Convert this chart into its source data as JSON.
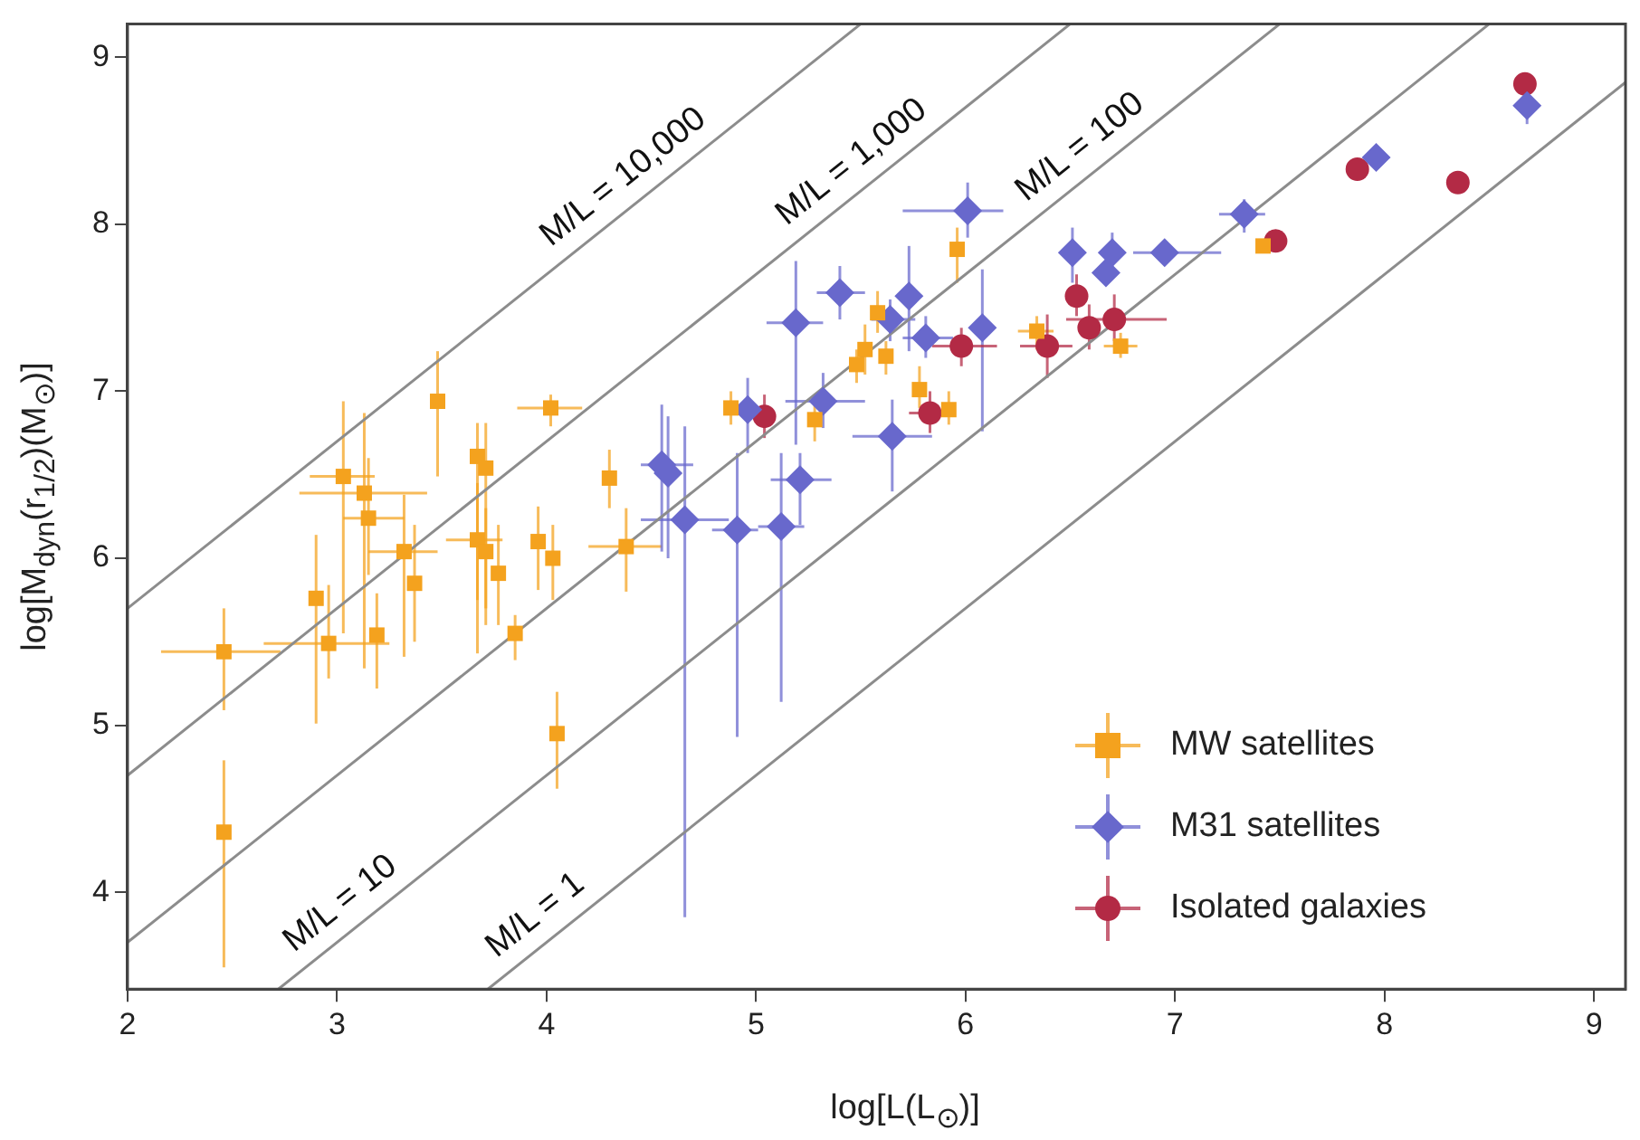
{
  "chart_data": {
    "type": "scatter",
    "xlabel": "log[L(L$_{⊙}$)]",
    "ylabel": "log[M$_{dyn}$(r$_{1/2}$)(M$_{⊙}$)]",
    "xlim": [
      2,
      9.15
    ],
    "ylim": [
      3.42,
      9.2
    ],
    "xticks": [
      2,
      3,
      4,
      5,
      6,
      7,
      8,
      9
    ],
    "yticks": [
      4,
      5,
      6,
      7,
      8,
      9
    ],
    "grid": false,
    "legend": "bottom right",
    "series": [
      {
        "type": "line",
        "color": "#8c8c8c",
        "marker": "none",
        "x": [
          3.72,
          9.15
        ],
        "values": [
          3.42,
          8.85
        ]
      },
      {
        "type": "line",
        "color": "#8c8c8c",
        "marker": "none",
        "x": [
          2.72,
          8.5
        ],
        "values": [
          3.42,
          9.2
        ]
      },
      {
        "type": "line",
        "color": "#8c8c8c",
        "marker": "none",
        "x": [
          2,
          7.5
        ],
        "values": [
          3.7,
          9.2
        ]
      },
      {
        "type": "line",
        "color": "#8c8c8c",
        "marker": "none",
        "x": [
          2,
          6.5
        ],
        "values": [
          4.7,
          9.2
        ]
      },
      {
        "type": "line",
        "color": "#8c8c8c",
        "marker": "none",
        "x": [
          2,
          5.5
        ],
        "values": [
          5.7,
          9.2
        ]
      },
      {
        "name": "MW satellites",
        "color": "#f4a21e",
        "marker": "square",
        "x": [
          2.46,
          2.46,
          3.48,
          3.03,
          3.13,
          3.15,
          2.9,
          2.96,
          3.19,
          3.32,
          3.37,
          3.67,
          3.71,
          3.67,
          3.71,
          3.77,
          3.85,
          3.96,
          4.03,
          4.02,
          4.3,
          4.38,
          4.05,
          4.88,
          5.28,
          5.58,
          5.52,
          5.62,
          5.48,
          5.78,
          5.92,
          5.96,
          6.34,
          6.74,
          7.42
        ],
        "values": [
          5.44,
          4.36,
          6.94,
          6.49,
          6.39,
          6.24,
          5.76,
          5.49,
          5.54,
          6.04,
          5.85,
          6.61,
          6.54,
          6.11,
          6.04,
          5.91,
          5.55,
          6.1,
          6.0,
          6.9,
          6.48,
          6.07,
          4.95,
          6.9,
          6.83,
          7.47,
          7.25,
          7.21,
          7.16,
          7.01,
          6.89,
          7.85,
          7.36,
          7.27,
          7.87
        ],
        "errors": [
          [
            5.09,
            5.7
          ],
          [
            3.55,
            4.79
          ],
          [
            6.49,
            7.24
          ],
          [
            5.55,
            6.94
          ],
          [
            5.34,
            6.87
          ],
          [
            5.9,
            6.6
          ],
          [
            5.01,
            6.14
          ],
          [
            5.28,
            5.84
          ],
          [
            5.22,
            5.79
          ],
          [
            5.41,
            6.38
          ],
          [
            5.5,
            6.2
          ],
          [
            5.43,
            6.81
          ],
          [
            5.6,
            6.81
          ],
          [
            5.75,
            6.45
          ],
          [
            5.7,
            6.3
          ],
          [
            5.6,
            6.2
          ],
          [
            5.39,
            5.66
          ],
          [
            5.81,
            6.31
          ],
          [
            5.75,
            6.2
          ],
          [
            6.79,
            6.98
          ],
          [
            6.3,
            6.65
          ],
          [
            5.8,
            6.3
          ],
          [
            4.62,
            5.2
          ],
          [
            6.8,
            7.0
          ],
          [
            6.7,
            6.95
          ],
          [
            7.35,
            7.6
          ],
          [
            7.1,
            7.4
          ],
          [
            7.1,
            7.3
          ],
          [
            7.05,
            7.25
          ],
          [
            6.9,
            7.15
          ],
          [
            6.8,
            7.0
          ],
          [
            7.65,
            7.98
          ],
          [
            7.25,
            7.45
          ],
          [
            7.2,
            7.35
          ],
          null
        ],
        "xerrors": [
          [
            2.16,
            2.73
          ],
          null,
          null,
          [
            2.87,
            3.18
          ],
          [
            2.82,
            3.43
          ],
          [
            3.03,
            3.32
          ],
          null,
          [
            2.65,
            3.25
          ],
          null,
          [
            3.15,
            3.48
          ],
          null,
          null,
          null,
          [
            3.52,
            3.79
          ],
          null,
          null,
          null,
          null,
          null,
          [
            3.86,
            4.17
          ],
          null,
          [
            4.2,
            4.55
          ],
          null,
          null,
          null,
          null,
          null,
          null,
          null,
          null,
          null,
          null,
          [
            6.25,
            6.42
          ],
          [
            6.66,
            6.82
          ],
          null
        ]
      },
      {
        "name": "M31 satellites",
        "color": "#6868cc",
        "marker": "diamond",
        "x": [
          6.01,
          5.19,
          5.4,
          5.73,
          5.64,
          5.81,
          6.08,
          5.32,
          5.65,
          4.96,
          5.21,
          4.55,
          4.58,
          4.66,
          4.91,
          5.12,
          6.51,
          6.7,
          6.67,
          6.95,
          7.33,
          7.96,
          8.68
        ],
        "values": [
          8.08,
          7.41,
          7.59,
          7.57,
          7.43,
          7.32,
          7.38,
          6.94,
          6.73,
          6.89,
          6.47,
          6.56,
          6.51,
          6.23,
          6.17,
          6.19,
          7.83,
          7.83,
          7.71,
          7.83,
          8.06,
          8.4,
          8.71
        ],
        "errors": [
          [
            7.92,
            8.25
          ],
          [
            6.68,
            7.78
          ],
          [
            7.43,
            7.75
          ],
          [
            7.24,
            7.87
          ],
          [
            7.3,
            7.55
          ],
          [
            7.2,
            7.45
          ],
          [
            6.76,
            7.73
          ],
          [
            6.78,
            7.11
          ],
          [
            6.4,
            6.95
          ],
          [
            6.63,
            7.08
          ],
          [
            6.2,
            6.63
          ],
          [
            6.04,
            6.92
          ],
          [
            6.0,
            6.85
          ],
          [
            3.85,
            6.79
          ],
          [
            4.93,
            6.63
          ],
          [
            5.14,
            6.63
          ],
          [
            7.65,
            7.98
          ],
          [
            7.7,
            7.95
          ],
          null,
          null,
          [
            7.95,
            8.15
          ],
          null,
          [
            8.6,
            8.8
          ]
        ],
        "xerrors": [
          [
            5.7,
            6.18
          ],
          [
            5.05,
            5.32
          ],
          [
            5.29,
            5.52
          ],
          null,
          [
            5.55,
            5.76
          ],
          [
            5.7,
            5.94
          ],
          null,
          [
            5.14,
            5.52
          ],
          [
            5.46,
            5.84
          ],
          null,
          [
            5.07,
            5.36
          ],
          [
            4.45,
            4.7
          ],
          null,
          [
            4.45,
            4.87
          ],
          [
            4.79,
            5.01
          ],
          [
            5.01,
            5.23
          ],
          null,
          null,
          null,
          [
            6.8,
            7.22
          ],
          [
            7.21,
            7.43
          ],
          null,
          null
        ]
      },
      {
        "name": "Isolated galaxies",
        "color": "#b32a45",
        "marker": "circle",
        "x": [
          5.04,
          5.83,
          5.98,
          6.53,
          6.39,
          6.59,
          6.71,
          7.48,
          7.87,
          8.35,
          8.67
        ],
        "values": [
          6.85,
          6.87,
          7.27,
          7.57,
          7.27,
          7.38,
          7.43,
          7.9,
          8.33,
          8.25,
          8.84
        ],
        "errors": [
          [
            6.72,
            6.98
          ],
          [
            6.75,
            7.0
          ],
          [
            7.15,
            7.38
          ],
          [
            7.45,
            7.7
          ],
          [
            7.08,
            7.46
          ],
          [
            7.25,
            7.52
          ],
          [
            7.3,
            7.58
          ],
          null,
          null,
          null,
          null
        ],
        "xerrors": [
          null,
          [
            5.73,
            5.95
          ],
          [
            5.84,
            6.15
          ],
          null,
          [
            6.26,
            6.51
          ],
          null,
          [
            6.48,
            6.96
          ],
          null,
          null,
          null,
          null
        ]
      }
    ],
    "annotations": [
      {
        "text": "M/L = 10,000",
        "x": 4.45,
        "y": 8.15
      },
      {
        "text": "M/L = 1,000",
        "x": 5.54,
        "y": 8.24
      },
      {
        "text": "M/L = 100",
        "x": 6.63,
        "y": 8.33
      },
      {
        "text": "M/L = 10",
        "x": 3.1,
        "y": 3.8
      },
      {
        "text": "M/L = 1",
        "x": 4.03,
        "y": 3.73
      }
    ]
  }
}
